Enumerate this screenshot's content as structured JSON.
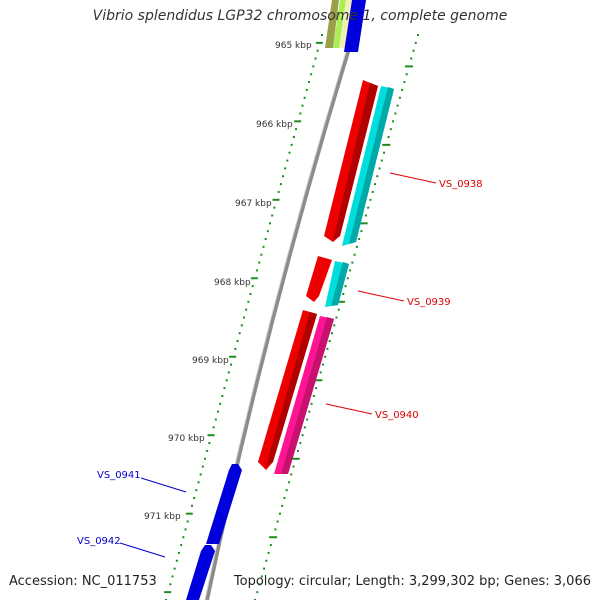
{
  "title": "Vibrio splendidus LGP32 chromosome 1, complete genome",
  "accession": "Accession: NC_011753",
  "summary": "Topology: circular; Length: 3,299,302 bp; Genes: 3,066",
  "colors": {
    "backbone": "#8c8c8c",
    "ruler_dots": "#1e8c1e",
    "label_red": "#dd0000",
    "label_blue": "#0000cc",
    "gene_red": "#ee0000",
    "gene_cyan": "#00dddd",
    "gene_pink": "#ff1493",
    "gene_blue": "#0000dd",
    "gene_olive": "#9aa04a",
    "gene_lime": "#aaee55",
    "gene_yellow": "#eeeeaa"
  },
  "ruler_ticks": [
    {
      "label": "965 kbp"
    },
    {
      "label": "966 kbp"
    },
    {
      "label": "967 kbp"
    },
    {
      "label": "968 kbp"
    },
    {
      "label": "969 kbp"
    },
    {
      "label": "970 kbp"
    },
    {
      "label": "971 kbp"
    }
  ],
  "gene_labels": [
    {
      "text": "VS_0938",
      "color": "label_red"
    },
    {
      "text": "VS_0939",
      "color": "label_red"
    },
    {
      "text": "VS_0940",
      "color": "label_red"
    },
    {
      "text": "VS_0941",
      "color": "label_blue"
    },
    {
      "text": "VS_0942",
      "color": "label_blue"
    }
  ]
}
